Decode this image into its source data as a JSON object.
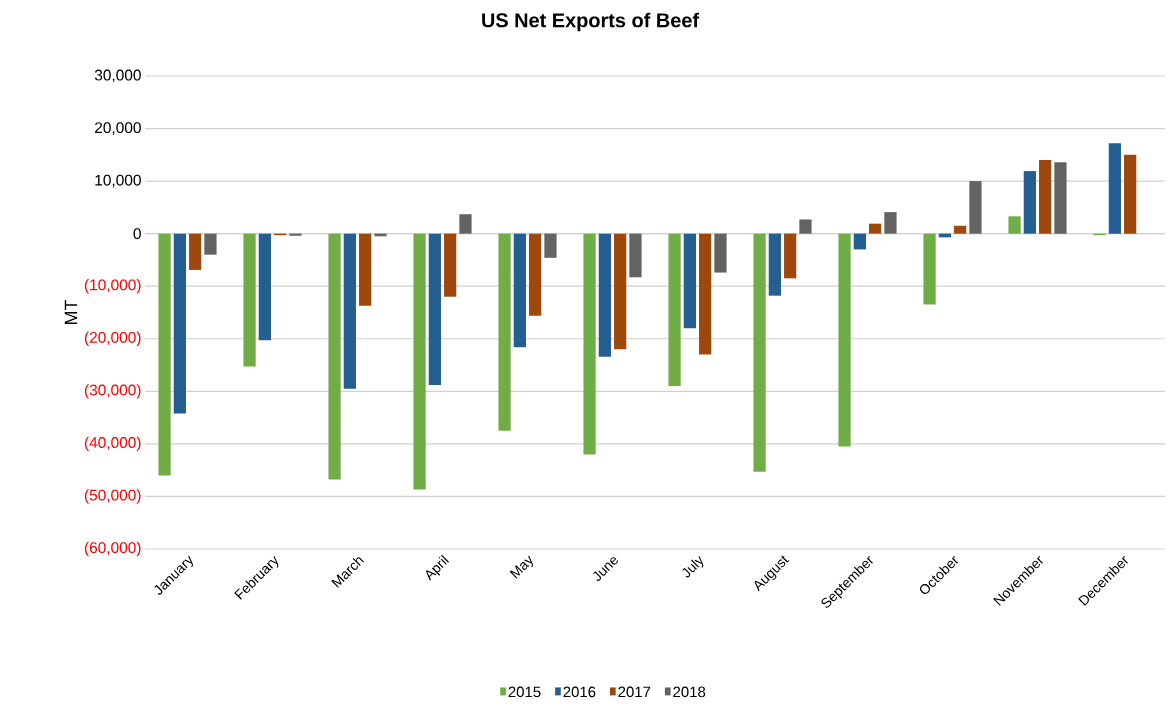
{
  "chart_data": {
    "type": "bar",
    "title": "US Net Exports of Beef",
    "ylabel": "MT",
    "categories": [
      "January",
      "February",
      "March",
      "April",
      "May",
      "June",
      "July",
      "August",
      "September",
      "October",
      "November",
      "December"
    ],
    "series": [
      {
        "name": "2015",
        "color": "#70ad47",
        "values": [
          -46000,
          -25300,
          -46800,
          -48700,
          -37500,
          -42000,
          -29000,
          -45300,
          -40500,
          -13500,
          3300,
          -300
        ]
      },
      {
        "name": "2016",
        "color": "#255e91",
        "values": [
          -34200,
          -20300,
          -29500,
          -28800,
          -21600,
          -23400,
          -18000,
          -11800,
          -3000,
          -700,
          11900,
          17200
        ]
      },
      {
        "name": "2017",
        "color": "#9e480e",
        "values": [
          -6900,
          -300,
          -13700,
          -12000,
          -15600,
          -22000,
          -23000,
          -8500,
          1900,
          1500,
          14000,
          15000
        ]
      },
      {
        "name": "2018",
        "color": "#636363",
        "values": [
          -4000,
          -400,
          -500,
          3700,
          -4600,
          -8300,
          -7400,
          2700,
          4100,
          10000,
          13600,
          null
        ]
      }
    ],
    "ylim": [
      -60000,
      30000
    ],
    "yticks": [
      {
        "value": -60000,
        "label": "(60,000)"
      },
      {
        "value": -50000,
        "label": "(50,000)"
      },
      {
        "value": -40000,
        "label": "(40,000)"
      },
      {
        "value": -30000,
        "label": "(30,000)"
      },
      {
        "value": -20000,
        "label": "(20,000)"
      },
      {
        "value": -10000,
        "label": "(10,000)"
      },
      0,
      {
        "value": 10000,
        "label": "10,000"
      },
      {
        "value": 20000,
        "label": "20,000"
      },
      {
        "value": 30000,
        "label": "30,000"
      }
    ],
    "grid": "y",
    "legend": "bottom"
  }
}
